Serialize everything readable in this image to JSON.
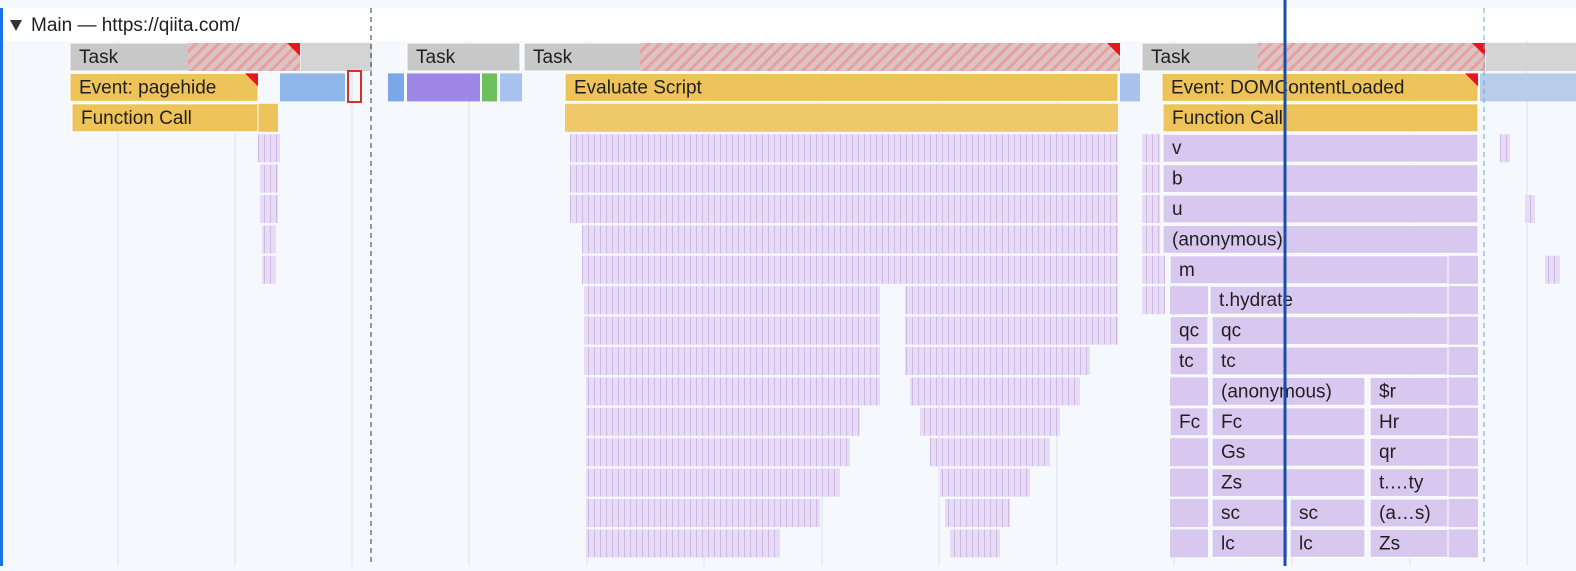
{
  "header": {
    "title": "Main — https://qiita.com/"
  },
  "rows": [
    [
      "Task",
      "Task",
      "Task",
      "Task"
    ],
    [
      "Event: pagehide",
      "Evaluate Script",
      "Event: DOMContentLoaded"
    ],
    [
      "Function Call",
      "Function Call"
    ],
    [
      "v"
    ],
    [
      "b"
    ],
    [
      "u"
    ],
    [
      "(anonymous)"
    ],
    [
      "m"
    ],
    [
      "t.hydrate"
    ],
    [
      "qc",
      "qc"
    ],
    [
      "tc",
      "tc"
    ],
    [
      "(anonymous)",
      "$r"
    ],
    [
      "Fc",
      "Fc",
      "Hr"
    ],
    [
      "Gs",
      "qr"
    ],
    [
      "Zs",
      "t.…ty"
    ],
    [
      "sc",
      "sc",
      "(a…s)"
    ],
    [
      "lc",
      "lc",
      "Zs"
    ]
  ]
}
